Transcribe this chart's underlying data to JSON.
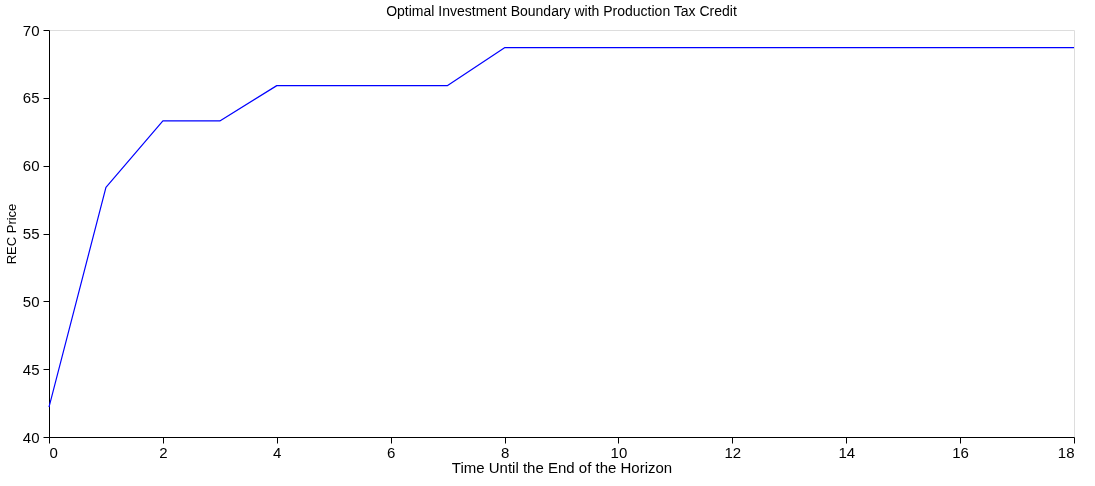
{
  "chart_data": {
    "type": "line",
    "title": "Optimal Investment Boundary with Production Tax Credit",
    "xlabel": "Time Until the End of the Horizon",
    "ylabel": "REC Price",
    "x": [
      0,
      1,
      2,
      3,
      4,
      7,
      8,
      18
    ],
    "series": [
      {
        "color": "#0000ff",
        "values": [
          42.2,
          58.4,
          63.3,
          63.3,
          65.9,
          65.9,
          68.7,
          68.7
        ]
      }
    ],
    "xlim": [
      0,
      18
    ],
    "xticks": [
      0,
      2,
      4,
      6,
      8,
      10,
      12,
      14,
      16,
      18
    ],
    "ylim": [
      40,
      70
    ],
    "yticks": [
      40,
      45,
      50,
      55,
      60,
      65,
      70
    ],
    "grid": false,
    "legend": false,
    "marker": "none",
    "line_style": "solid"
  }
}
